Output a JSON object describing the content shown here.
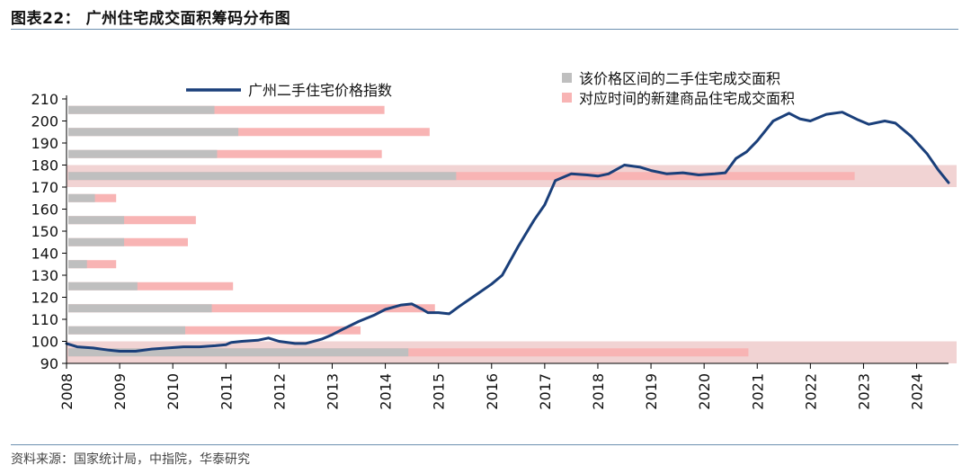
{
  "figure": {
    "title": "图表22： 广州住宅成交面积筹码分布图",
    "source": "资料来源：国家统计局，中指院，华泰研究"
  },
  "colors": {
    "line": "#1a3f7a",
    "gray_bar": "#bfbfbf",
    "pink_bar": "#f8b4b4",
    "band": "#f1d3d3",
    "axis": "#000000"
  },
  "chart_data": {
    "type": "line+horizontal-bar",
    "ylim": [
      90,
      210
    ],
    "yticks": [
      90,
      100,
      110,
      120,
      130,
      140,
      150,
      160,
      170,
      180,
      190,
      200,
      210
    ],
    "xlim": [
      2008,
      2024.6
    ],
    "xticks": [
      "2008",
      "2009",
      "2010",
      "2011",
      "2012",
      "2013",
      "2014",
      "2015",
      "2016",
      "2017",
      "2018",
      "2019",
      "2020",
      "2021",
      "2022",
      "2023",
      "2024"
    ],
    "legend": {
      "line": "广州二手住宅价格指数",
      "gray": "该价格区间的二手住宅成交面积",
      "pink": "对应时间的新建商品住宅成交面积"
    },
    "highlight_bands": [
      [
        90,
        100
      ],
      [
        170,
        180
      ]
    ],
    "bars": [
      {
        "y": 95,
        "gray": 6.4,
        "pink": 12.8
      },
      {
        "y": 105,
        "gray": 2.2,
        "pink": 5.5
      },
      {
        "y": 115,
        "gray": 2.7,
        "pink": 6.9
      },
      {
        "y": 125,
        "gray": 1.3,
        "pink": 3.1
      },
      {
        "y": 135,
        "gray": 0.35,
        "pink": 0.9
      },
      {
        "y": 145,
        "gray": 1.05,
        "pink": 2.25
      },
      {
        "y": 155,
        "gray": 1.05,
        "pink": 2.4
      },
      {
        "y": 165,
        "gray": 0.5,
        "pink": 0.9
      },
      {
        "y": 175,
        "gray": 7.3,
        "pink": 14.8
      },
      {
        "y": 185,
        "gray": 2.8,
        "pink": 5.9
      },
      {
        "y": 195,
        "gray": 3.2,
        "pink": 6.8
      },
      {
        "y": 205,
        "gray": 2.75,
        "pink": 5.95
      }
    ],
    "series": [
      {
        "name": "广州二手住宅价格指数",
        "x": [
          2008.0,
          2008.2,
          2008.5,
          2008.8,
          2009.0,
          2009.3,
          2009.6,
          2009.9,
          2010.2,
          2010.5,
          2010.8,
          2011.0,
          2011.1,
          2011.3,
          2011.6,
          2011.8,
          2012.0,
          2012.3,
          2012.5,
          2012.8,
          2013.0,
          2013.2,
          2013.5,
          2013.8,
          2014.0,
          2014.3,
          2014.5,
          2014.7,
          2014.8,
          2015.0,
          2015.2,
          2015.4,
          2015.7,
          2016.0,
          2016.2,
          2016.5,
          2016.8,
          2017.0,
          2017.2,
          2017.5,
          2017.8,
          2018.0,
          2018.2,
          2018.5,
          2018.8,
          2019.0,
          2019.3,
          2019.6,
          2019.9,
          2020.2,
          2020.4,
          2020.6,
          2020.8,
          2021.0,
          2021.3,
          2021.6,
          2021.8,
          2022.0,
          2022.3,
          2022.6,
          2022.9,
          2023.1,
          2023.4,
          2023.6,
          2023.9,
          2024.2,
          2024.4,
          2024.6
        ],
        "values": [
          99,
          97.5,
          97,
          96,
          95.5,
          95.5,
          96.5,
          97,
          97.5,
          97.5,
          98,
          98.5,
          99.5,
          100,
          100.5,
          101.5,
          100,
          99,
          99,
          101,
          103,
          105.5,
          109,
          112,
          114.5,
          116.5,
          117,
          114.5,
          113,
          113,
          112.5,
          116,
          121,
          126,
          130,
          143,
          155,
          162,
          173,
          176,
          175.5,
          175,
          176,
          180,
          179,
          177.5,
          176,
          176.5,
          175.5,
          176,
          176.5,
          183,
          186,
          191,
          200,
          203.5,
          201,
          200,
          203,
          204,
          200.5,
          198.5,
          200,
          199,
          193,
          185,
          178,
          172
        ]
      }
    ]
  }
}
